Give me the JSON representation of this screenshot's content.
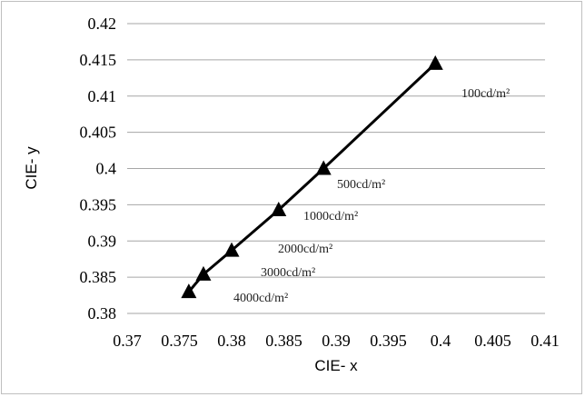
{
  "chart_data": {
    "type": "line",
    "xlabel": "CIE- x",
    "ylabel": "CIE- y",
    "xlim": [
      0.37,
      0.41
    ],
    "ylim": [
      0.38,
      0.42
    ],
    "x_ticks": [
      "0.37",
      "0.375",
      "0.38",
      "0.385",
      "0.39",
      "0.395",
      "0.4",
      "0.405",
      "0.41"
    ],
    "y_ticks": [
      "0.38",
      "0.385",
      "0.39",
      "0.395",
      "0.4",
      "0.405",
      "0.41",
      "0.415",
      "0.42"
    ],
    "grid": "horizontal",
    "marker": "triangle",
    "series": [
      {
        "x": [
          0.3995,
          0.3888,
          0.3845,
          0.38,
          0.3773,
          0.3759
        ],
        "y": [
          0.4145,
          0.4,
          0.3943,
          0.3887,
          0.3854,
          0.383
        ]
      }
    ],
    "annotations": [
      "100cd/m²",
      "500cd/m²",
      "1000cd/m²",
      "2000cd/m²",
      "3000cd/m²",
      "4000cd/m²"
    ]
  }
}
